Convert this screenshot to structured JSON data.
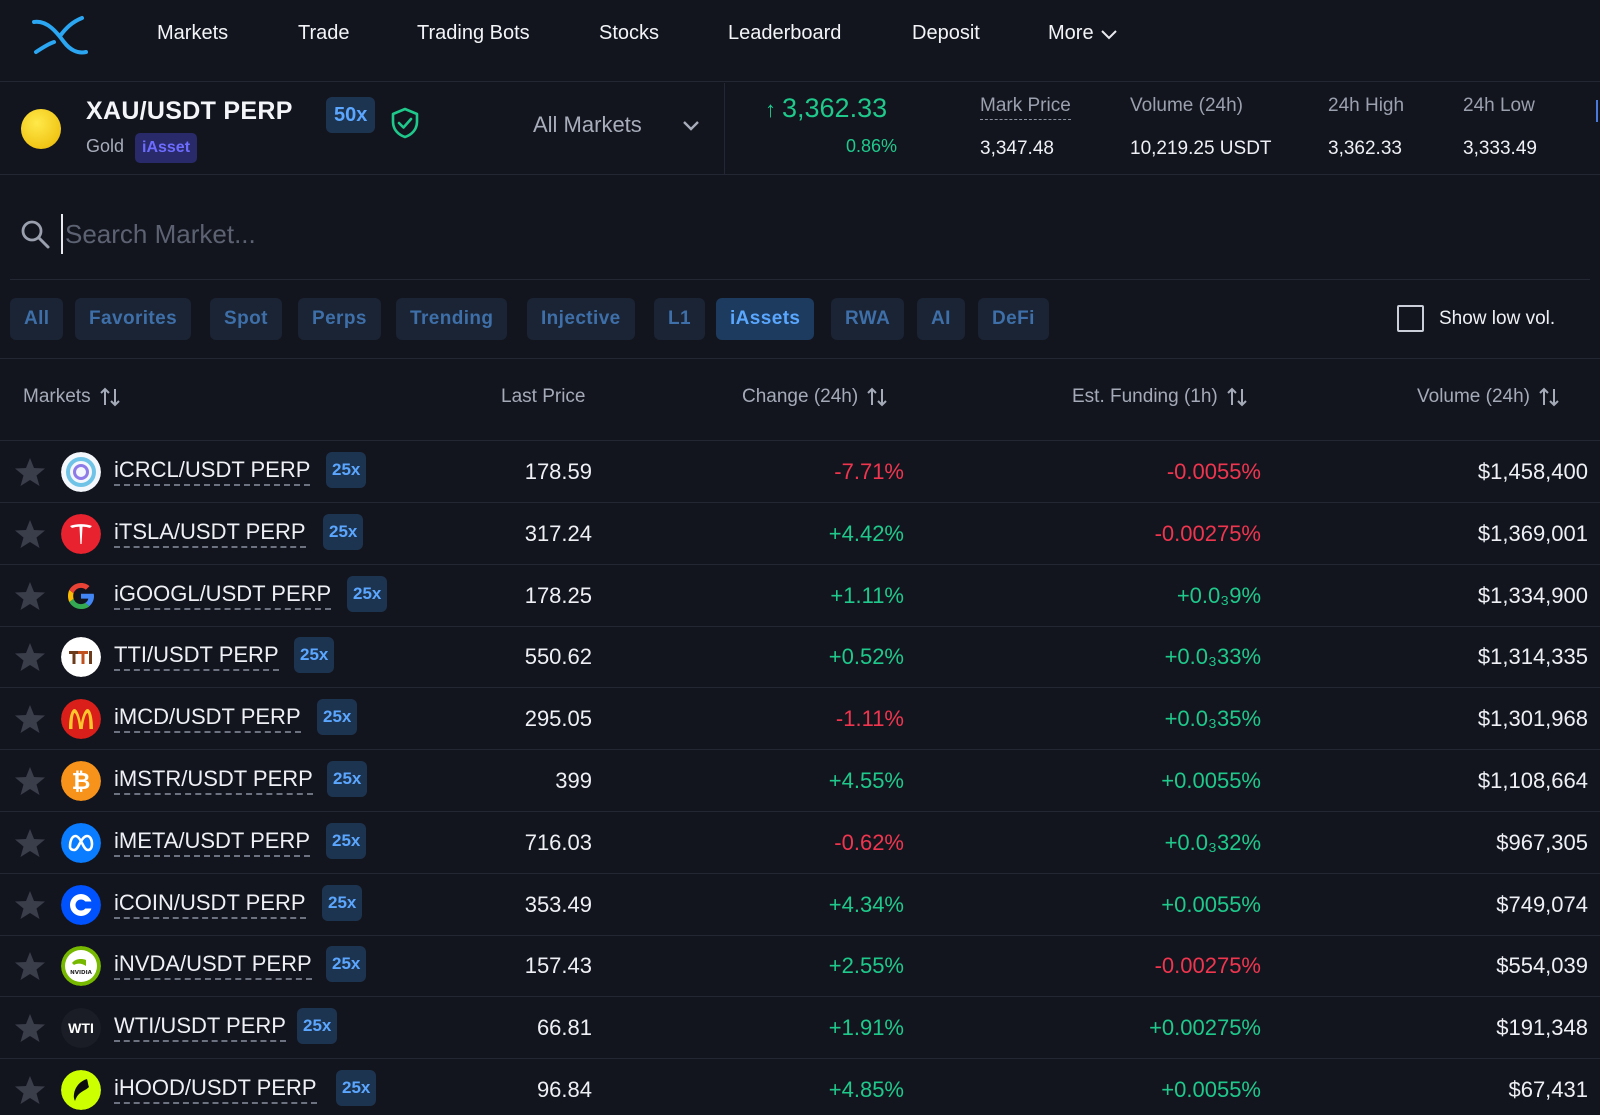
{
  "nav": {
    "items": [
      "Markets",
      "Trade",
      "Trading Bots",
      "Stocks",
      "Leaderboard",
      "Deposit"
    ],
    "more_label": "More"
  },
  "market": {
    "pair": "XAU/USDT PERP",
    "leverage": "50x",
    "asset_name": "Gold",
    "asset_badge": "iAsset",
    "selector_label": "All Markets",
    "last_price": "3,362.33",
    "change_pct": "0.86%",
    "stats": {
      "mark_price_label": "Mark Price",
      "mark_price": "3,347.48",
      "volume_label": "Volume (24h)",
      "volume": "10,219.25 USDT",
      "high_label": "24h High",
      "high": "3,362.33",
      "low_label": "24h Low",
      "low": "3,333.49"
    }
  },
  "search": {
    "placeholder": "Search Market..."
  },
  "filters": {
    "chips": [
      "All",
      "Favorites",
      "Spot",
      "Perps",
      "Trending",
      "Injective",
      "L1",
      "iAssets",
      "RWA",
      "AI",
      "DeFi"
    ],
    "active": "iAssets",
    "low_vol_label": "Show low vol."
  },
  "table": {
    "headers": {
      "markets": "Markets",
      "last_price": "Last Price",
      "change": "Change (24h)",
      "funding": "Est. Funding (1h)",
      "volume": "Volume (24h)"
    },
    "rows": [
      {
        "icon": "circle-icon",
        "name": "iCRCL/USDT PERP",
        "lev": "25x",
        "price": "178.59",
        "change": "-7.71%",
        "change_dir": "neg",
        "funding": "-0.0055%",
        "funding_dir": "neg",
        "volume": "$1,458,400"
      },
      {
        "icon": "tesla-icon",
        "name": "iTSLA/USDT PERP",
        "lev": "25x",
        "price": "317.24",
        "change": "+4.42%",
        "change_dir": "pos",
        "funding": "-0.00275%",
        "funding_dir": "neg",
        "volume": "$1,369,001"
      },
      {
        "icon": "google-icon",
        "name": "iGOOGL/USDT PERP",
        "lev": "25x",
        "price": "178.25",
        "change": "+1.11%",
        "change_dir": "pos",
        "funding": "+0.0₃9%",
        "funding_dir": "pos",
        "volume": "$1,334,900"
      },
      {
        "icon": "tti-icon",
        "name": "TTI/USDT PERP",
        "lev": "25x",
        "price": "550.62",
        "change": "+0.52%",
        "change_dir": "pos",
        "funding": "+0.0₃33%",
        "funding_dir": "pos",
        "volume": "$1,314,335"
      },
      {
        "icon": "mcdonalds-icon",
        "name": "iMCD/USDT PERP",
        "lev": "25x",
        "price": "295.05",
        "change": "-1.11%",
        "change_dir": "neg",
        "funding": "+0.0₃35%",
        "funding_dir": "pos",
        "volume": "$1,301,968"
      },
      {
        "icon": "bitcoin-icon",
        "name": "iMSTR/USDT PERP",
        "lev": "25x",
        "price": "399",
        "change": "+4.55%",
        "change_dir": "pos",
        "funding": "+0.0055%",
        "funding_dir": "pos",
        "volume": "$1,108,664"
      },
      {
        "icon": "meta-icon",
        "name": "iMETA/USDT PERP",
        "lev": "25x",
        "price": "716.03",
        "change": "-0.62%",
        "change_dir": "neg",
        "funding": "+0.0₃32%",
        "funding_dir": "pos",
        "volume": "$967,305"
      },
      {
        "icon": "coinbase-icon",
        "name": "iCOIN/USDT PERP",
        "lev": "25x",
        "price": "353.49",
        "change": "+4.34%",
        "change_dir": "pos",
        "funding": "+0.0055%",
        "funding_dir": "pos",
        "volume": "$749,074"
      },
      {
        "icon": "nvidia-icon",
        "name": "iNVDA/USDT PERP",
        "lev": "25x",
        "price": "157.43",
        "change": "+2.55%",
        "change_dir": "pos",
        "funding": "-0.00275%",
        "funding_dir": "neg",
        "volume": "$554,039"
      },
      {
        "icon": "wti-icon",
        "name": "WTI/USDT PERP",
        "lev": "25x",
        "price": "66.81",
        "change": "+1.91%",
        "change_dir": "pos",
        "funding": "+0.00275%",
        "funding_dir": "pos",
        "volume": "$191,348"
      },
      {
        "icon": "robinhood-icon",
        "name": "iHOOD/USDT PERP",
        "lev": "25x",
        "price": "96.84",
        "change": "+4.85%",
        "change_dir": "pos",
        "funding": "+0.0055%",
        "funding_dir": "pos",
        "volume": "$67,431"
      }
    ]
  },
  "colors": {
    "background": "#13151e",
    "positive": "#1ec98b",
    "negative": "#f0354f",
    "accent": "#5ba6ff"
  }
}
